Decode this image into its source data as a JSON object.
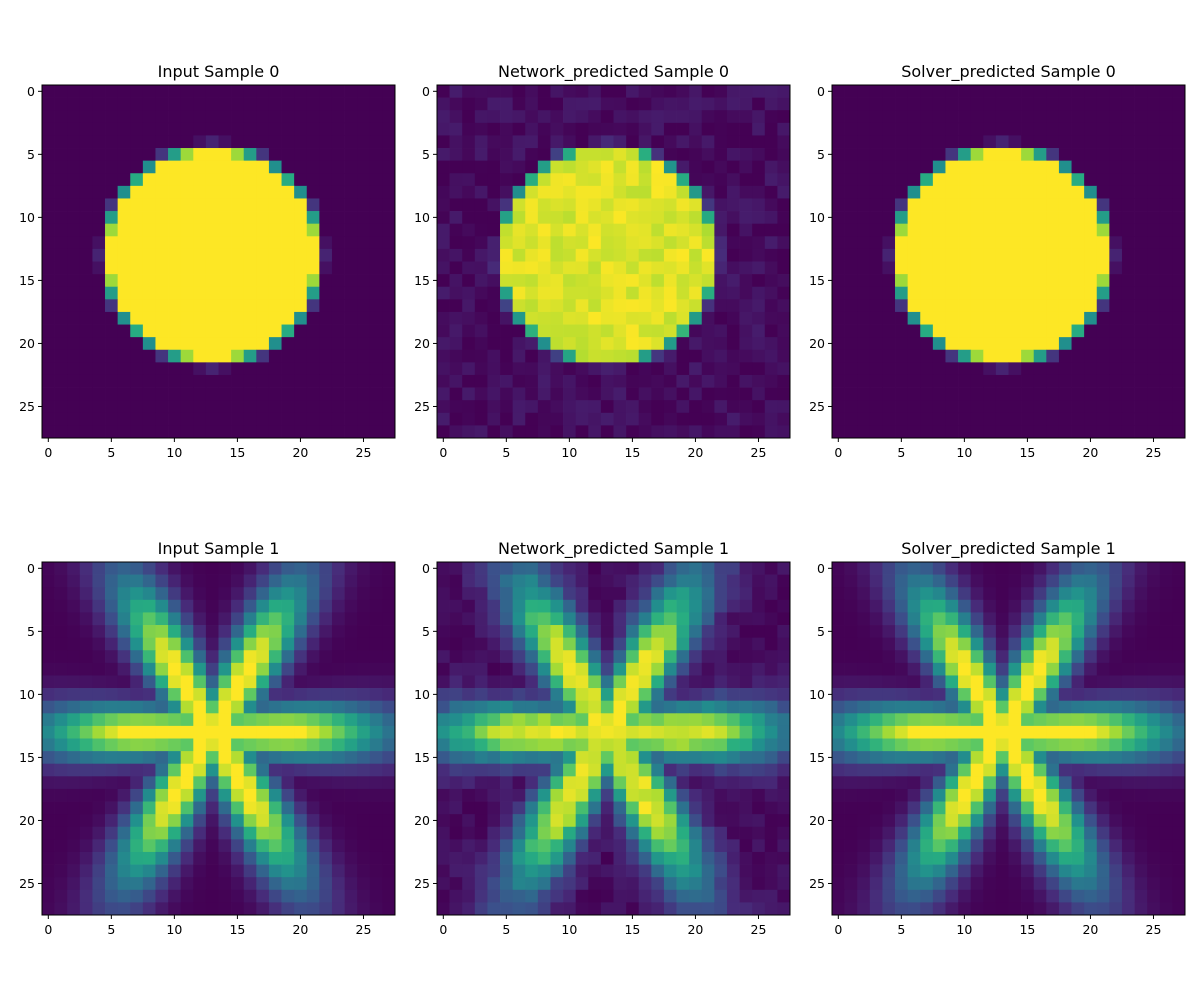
{
  "chart_data": [
    {
      "type": "heatmap",
      "title": "Input Sample 0",
      "shape": "disk",
      "noise": 0,
      "grid_size": 28,
      "xlim": [
        -0.5,
        27.5
      ],
      "ylim": [
        27.5,
        -0.5
      ],
      "xticks": [
        0,
        5,
        10,
        15,
        20,
        25
      ],
      "yticks": [
        0,
        5,
        10,
        15,
        20,
        25
      ],
      "colormap": "viridis",
      "value_range": [
        0,
        1
      ],
      "grid": false
    },
    {
      "type": "heatmap",
      "title": "Network_predicted Sample 0",
      "shape": "disk",
      "noise": 0.05,
      "grid_size": 28,
      "xlim": [
        -0.5,
        27.5
      ],
      "ylim": [
        27.5,
        -0.5
      ],
      "xticks": [
        0,
        5,
        10,
        15,
        20,
        25
      ],
      "yticks": [
        0,
        5,
        10,
        15,
        20,
        25
      ],
      "colormap": "viridis",
      "value_range": [
        0,
        1
      ],
      "grid": false
    },
    {
      "type": "heatmap",
      "title": "Solver_predicted Sample 0",
      "shape": "disk",
      "noise": 0,
      "grid_size": 28,
      "xlim": [
        -0.5,
        27.5
      ],
      "ylim": [
        27.5,
        -0.5
      ],
      "xticks": [
        0,
        5,
        10,
        15,
        20,
        25
      ],
      "yticks": [
        0,
        5,
        10,
        15,
        20,
        25
      ],
      "colormap": "viridis",
      "value_range": [
        0,
        1
      ],
      "grid": false
    },
    {
      "type": "heatmap",
      "title": "Input Sample 1",
      "shape": "six-petal star",
      "noise": 0,
      "grid_size": 28,
      "xlim": [
        -0.5,
        27.5
      ],
      "ylim": [
        27.5,
        -0.5
      ],
      "xticks": [
        0,
        5,
        10,
        15,
        20,
        25
      ],
      "yticks": [
        0,
        5,
        10,
        15,
        20,
        25
      ],
      "colormap": "viridis",
      "value_range": [
        0,
        1
      ],
      "grid": false
    },
    {
      "type": "heatmap",
      "title": "Network_predicted Sample 1",
      "shape": "six-petal star",
      "noise": 0.04,
      "grid_size": 28,
      "xlim": [
        -0.5,
        27.5
      ],
      "ylim": [
        27.5,
        -0.5
      ],
      "xticks": [
        0,
        5,
        10,
        15,
        20,
        25
      ],
      "yticks": [
        0,
        5,
        10,
        15,
        20,
        25
      ],
      "colormap": "viridis",
      "value_range": [
        0,
        1
      ],
      "grid": false
    },
    {
      "type": "heatmap",
      "title": "Solver_predicted Sample 1",
      "shape": "six-petal star",
      "noise": 0,
      "grid_size": 28,
      "xlim": [
        -0.5,
        27.5
      ],
      "ylim": [
        27.5,
        -0.5
      ],
      "xticks": [
        0,
        5,
        10,
        15,
        20,
        25
      ],
      "yticks": [
        0,
        5,
        10,
        15,
        20,
        25
      ],
      "colormap": "viridis",
      "value_range": [
        0,
        1
      ],
      "grid": false
    }
  ]
}
